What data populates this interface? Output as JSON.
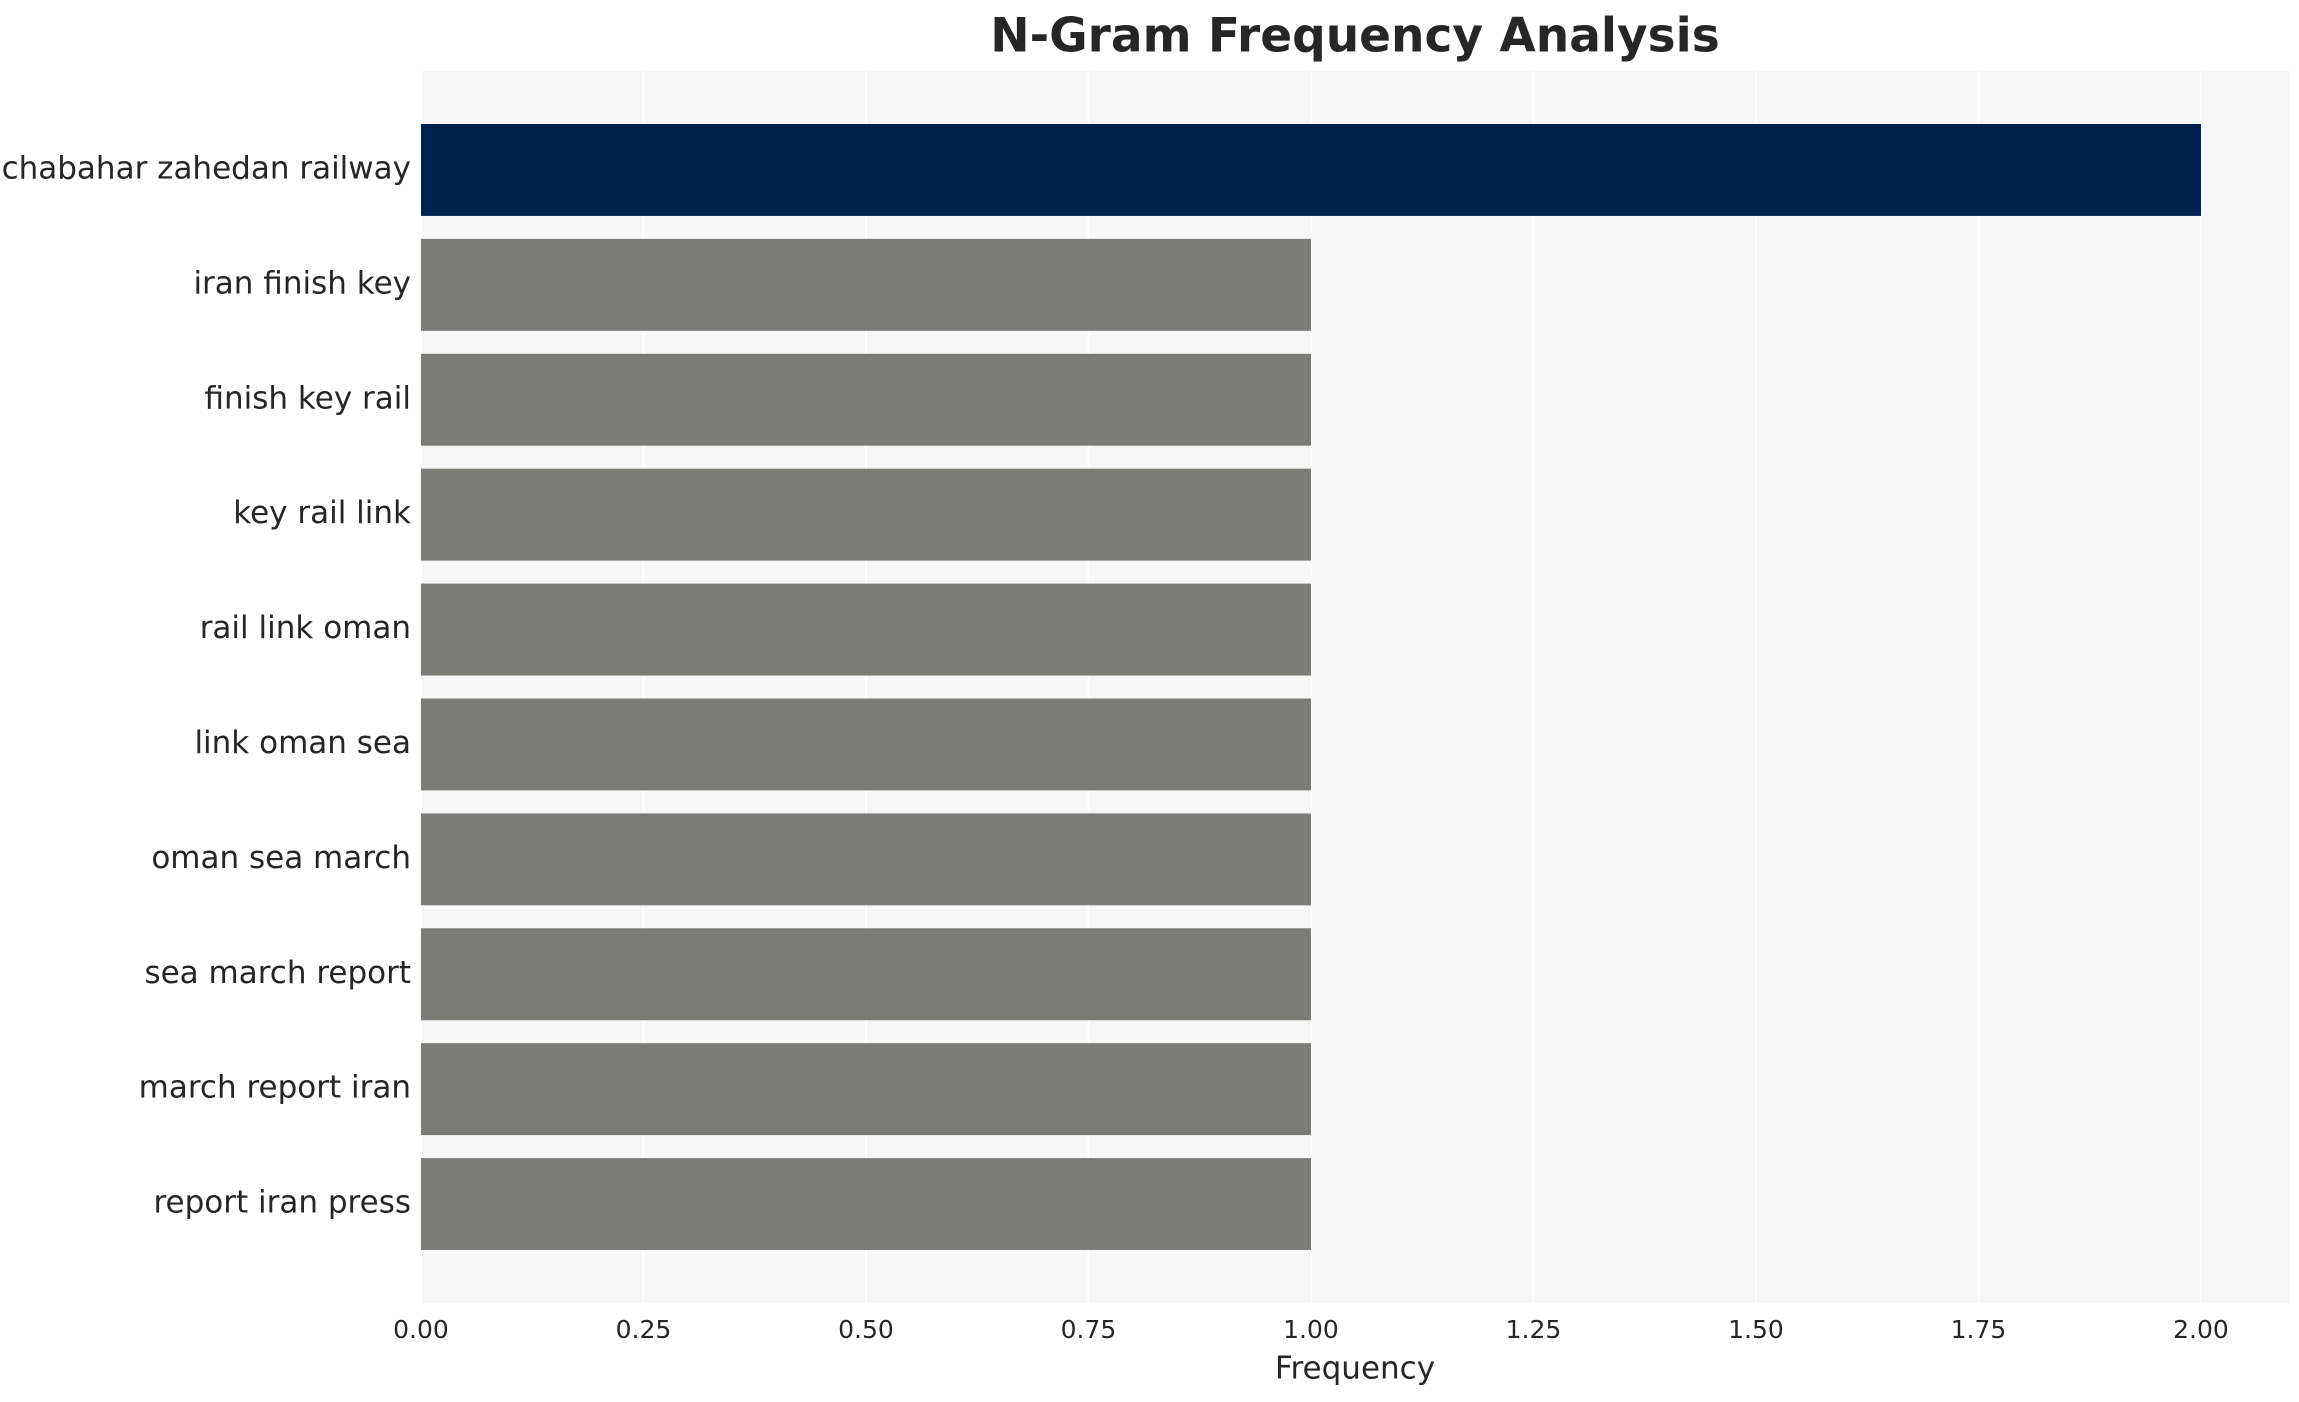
{
  "chart_data": {
    "type": "barh",
    "title": "N-Gram Frequency Analysis",
    "xlabel": "Frequency",
    "categories": [
      "chabahar zahedan railway",
      "iran finish key",
      "finish key rail",
      "key rail link",
      "rail link oman",
      "link oman sea",
      "oman sea march",
      "sea march report",
      "march report iran",
      "report iran press"
    ],
    "values": [
      2,
      1,
      1,
      1,
      1,
      1,
      1,
      1,
      1,
      1
    ],
    "colors": [
      "#00224e",
      "#7b7b77",
      "#7b7b77",
      "#7b7b77",
      "#7b7b77",
      "#7b7b77",
      "#7b7b77",
      "#7b7b77",
      "#7b7b77",
      "#7b7b77"
    ],
    "xlim": [
      0,
      2.1
    ],
    "xticks": [
      {
        "value": 0,
        "label": "0.00"
      },
      {
        "value": 0.25,
        "label": "0.25"
      },
      {
        "value": 0.5,
        "label": "0.50"
      },
      {
        "value": 0.75,
        "label": "0.75"
      },
      {
        "value": 1,
        "label": "1.00"
      },
      {
        "value": 1.25,
        "label": "1.25"
      },
      {
        "value": 1.5,
        "label": "1.50"
      },
      {
        "value": 1.75,
        "label": "1.75"
      },
      {
        "value": 2,
        "label": "2.00"
      }
    ],
    "grid": true
  }
}
